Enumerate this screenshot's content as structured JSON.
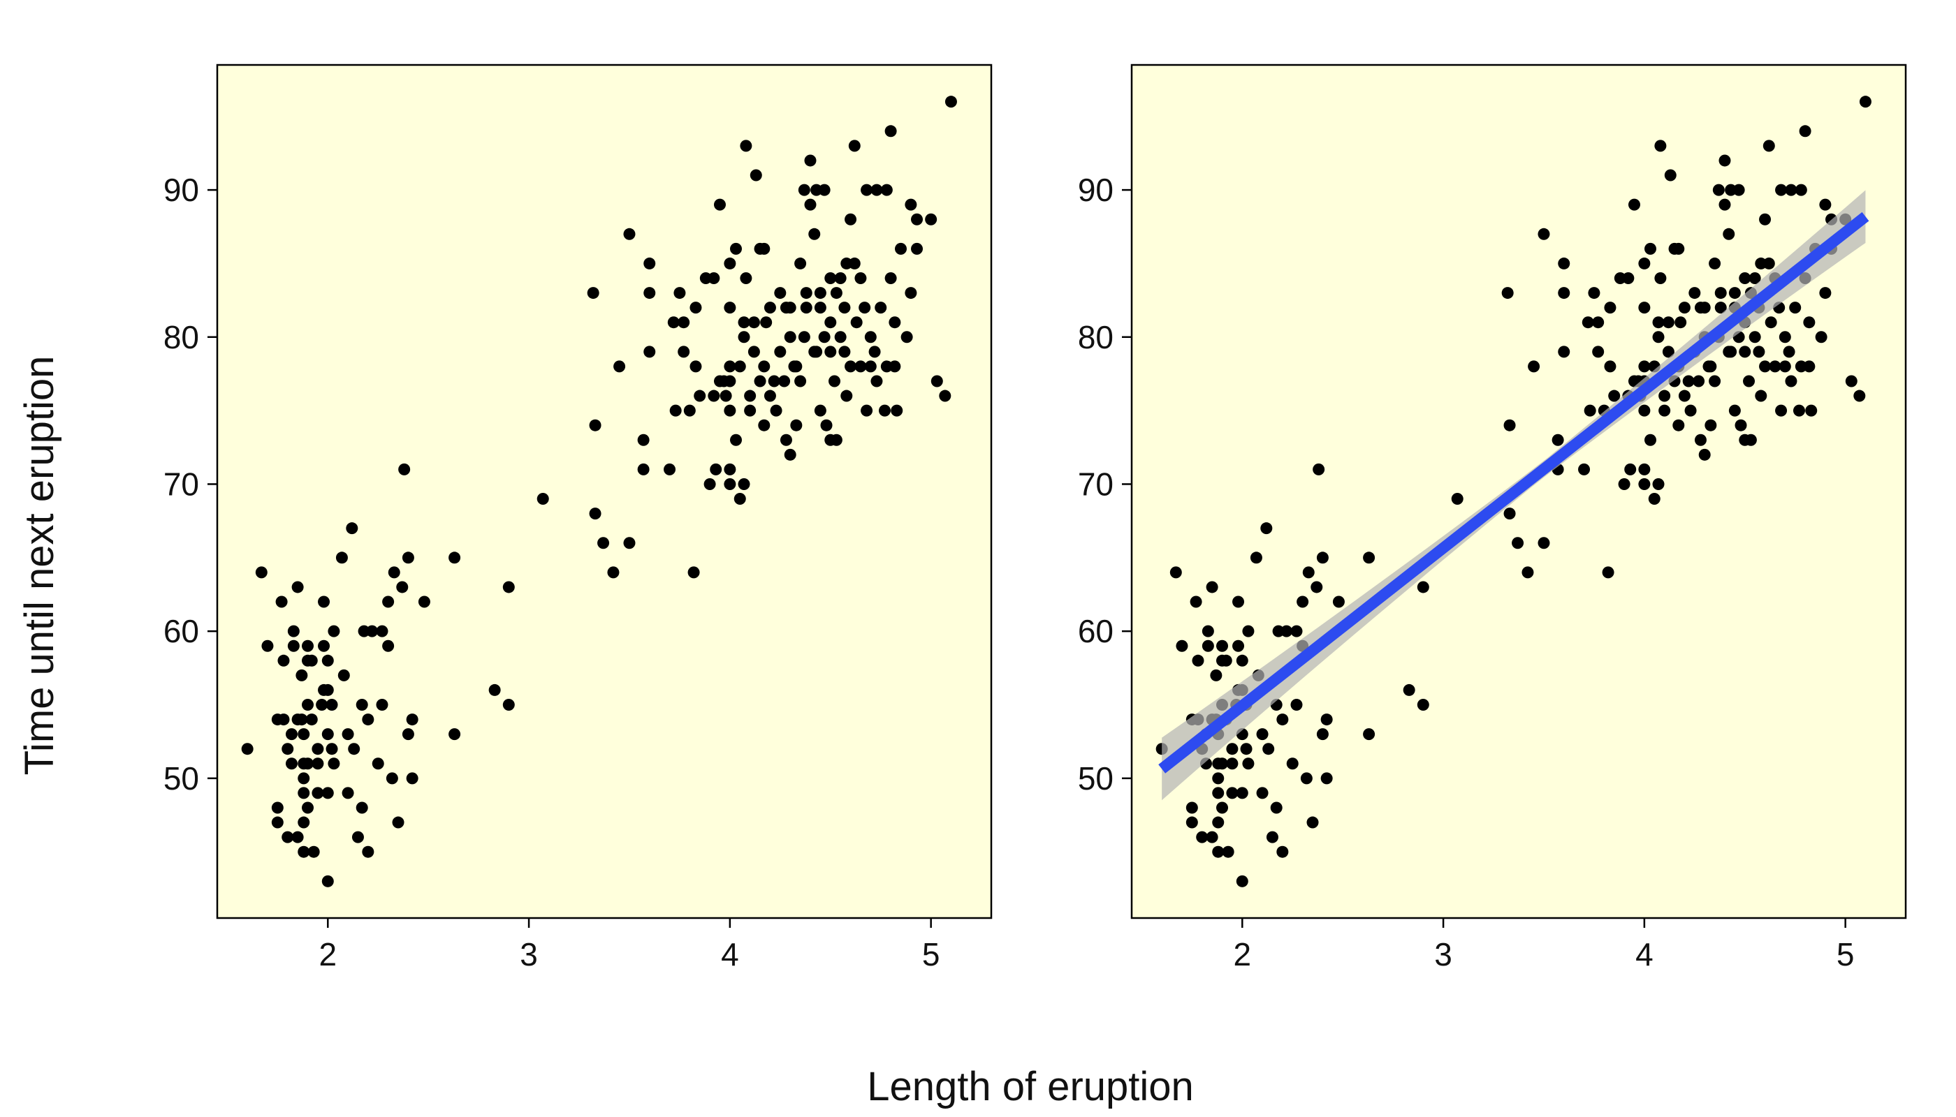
{
  "figure": {
    "xlabel": "Length of eruption",
    "ylabel": "Time until next eruption"
  },
  "chart_data": [
    {
      "type": "scatter",
      "title": "",
      "xlim": [
        1.45,
        5.3
      ],
      "ylim": [
        40.5,
        98.5
      ],
      "xticks": [
        2,
        3,
        4,
        5
      ],
      "yticks": [
        50,
        60,
        70,
        80,
        90
      ],
      "grid": false,
      "points": [
        [
          1.6,
          52
        ],
        [
          1.67,
          64
        ],
        [
          1.7,
          59
        ],
        [
          1.75,
          54
        ],
        [
          1.75,
          48
        ],
        [
          1.75,
          47
        ],
        [
          1.77,
          62
        ],
        [
          1.78,
          58
        ],
        [
          1.78,
          54
        ],
        [
          1.8,
          46
        ],
        [
          1.8,
          52
        ],
        [
          1.82,
          53
        ],
        [
          1.82,
          51
        ],
        [
          1.83,
          60
        ],
        [
          1.83,
          59
        ],
        [
          1.85,
          54
        ],
        [
          1.85,
          46
        ],
        [
          1.85,
          63
        ],
        [
          1.87,
          54
        ],
        [
          1.87,
          57
        ],
        [
          1.88,
          53
        ],
        [
          1.88,
          51
        ],
        [
          1.88,
          45
        ],
        [
          1.88,
          50
        ],
        [
          1.88,
          49
        ],
        [
          1.88,
          47
        ],
        [
          1.9,
          59
        ],
        [
          1.9,
          58
        ],
        [
          1.9,
          55
        ],
        [
          1.9,
          51
        ],
        [
          1.9,
          48
        ],
        [
          1.92,
          58
        ],
        [
          1.92,
          54
        ],
        [
          1.93,
          45
        ],
        [
          1.95,
          49
        ],
        [
          1.95,
          52
        ],
        [
          1.95,
          51
        ],
        [
          1.97,
          55
        ],
        [
          1.98,
          62
        ],
        [
          1.98,
          56
        ],
        [
          1.98,
          59
        ],
        [
          2.0,
          43
        ],
        [
          2.0,
          58
        ],
        [
          2.0,
          53
        ],
        [
          2.0,
          56
        ],
        [
          2.0,
          49
        ],
        [
          2.02,
          55
        ],
        [
          2.02,
          52
        ],
        [
          2.03,
          60
        ],
        [
          2.03,
          51
        ],
        [
          2.07,
          65
        ],
        [
          2.08,
          57
        ],
        [
          2.1,
          53
        ],
        [
          2.1,
          49
        ],
        [
          2.12,
          67
        ],
        [
          2.13,
          52
        ],
        [
          2.15,
          46
        ],
        [
          2.17,
          48
        ],
        [
          2.17,
          55
        ],
        [
          2.18,
          60
        ],
        [
          2.2,
          54
        ],
        [
          2.2,
          45
        ],
        [
          2.22,
          60
        ],
        [
          2.25,
          51
        ],
        [
          2.27,
          55
        ],
        [
          2.27,
          60
        ],
        [
          2.3,
          62
        ],
        [
          2.3,
          59
        ],
        [
          2.32,
          50
        ],
        [
          2.33,
          64
        ],
        [
          2.35,
          47
        ],
        [
          2.37,
          63
        ],
        [
          2.38,
          71
        ],
        [
          2.4,
          53
        ],
        [
          2.4,
          65
        ],
        [
          2.42,
          54
        ],
        [
          2.42,
          50
        ],
        [
          2.48,
          62
        ],
        [
          2.63,
          53
        ],
        [
          2.63,
          65
        ],
        [
          2.83,
          56
        ],
        [
          2.9,
          55
        ],
        [
          2.9,
          63
        ],
        [
          3.07,
          69
        ],
        [
          3.32,
          83
        ],
        [
          3.33,
          68
        ],
        [
          3.33,
          74
        ],
        [
          3.37,
          66
        ],
        [
          3.42,
          64
        ],
        [
          3.45,
          78
        ],
        [
          3.5,
          66
        ],
        [
          3.5,
          87
        ],
        [
          3.57,
          71
        ],
        [
          3.57,
          73
        ],
        [
          3.6,
          85
        ],
        [
          3.6,
          83
        ],
        [
          3.6,
          79
        ],
        [
          3.7,
          71
        ],
        [
          3.72,
          81
        ],
        [
          3.73,
          75
        ],
        [
          3.75,
          83
        ],
        [
          3.77,
          79
        ],
        [
          3.77,
          81
        ],
        [
          3.8,
          75
        ],
        [
          3.82,
          64
        ],
        [
          3.83,
          78
        ],
        [
          3.83,
          82
        ],
        [
          3.85,
          76
        ],
        [
          3.88,
          84
        ],
        [
          3.9,
          70
        ],
        [
          3.92,
          76
        ],
        [
          3.92,
          84
        ],
        [
          3.93,
          71
        ],
        [
          3.95,
          89
        ],
        [
          3.95,
          77
        ],
        [
          3.97,
          77
        ],
        [
          3.98,
          76
        ],
        [
          4.0,
          70
        ],
        [
          4.0,
          85
        ],
        [
          4.0,
          71
        ],
        [
          4.0,
          82
        ],
        [
          4.0,
          78
        ],
        [
          4.0,
          77
        ],
        [
          4.0,
          75
        ],
        [
          4.03,
          73
        ],
        [
          4.03,
          86
        ],
        [
          4.05,
          69
        ],
        [
          4.05,
          78
        ],
        [
          4.07,
          80
        ],
        [
          4.07,
          70
        ],
        [
          4.07,
          81
        ],
        [
          4.08,
          84
        ],
        [
          4.08,
          93
        ],
        [
          4.1,
          76
        ],
        [
          4.1,
          75
        ],
        [
          4.12,
          79
        ],
        [
          4.12,
          81
        ],
        [
          4.13,
          91
        ],
        [
          4.15,
          86
        ],
        [
          4.15,
          77
        ],
        [
          4.17,
          86
        ],
        [
          4.17,
          74
        ],
        [
          4.17,
          78
        ],
        [
          4.18,
          81
        ],
        [
          4.2,
          76
        ],
        [
          4.2,
          82
        ],
        [
          4.22,
          77
        ],
        [
          4.23,
          75
        ],
        [
          4.25,
          79
        ],
        [
          4.25,
          83
        ],
        [
          4.27,
          77
        ],
        [
          4.28,
          82
        ],
        [
          4.28,
          73
        ],
        [
          4.3,
          72
        ],
        [
          4.3,
          82
        ],
        [
          4.3,
          80
        ],
        [
          4.32,
          78
        ],
        [
          4.33,
          78
        ],
        [
          4.33,
          74
        ],
        [
          4.35,
          85
        ],
        [
          4.35,
          77
        ],
        [
          4.37,
          90
        ],
        [
          4.37,
          80
        ],
        [
          4.38,
          82
        ],
        [
          4.38,
          83
        ],
        [
          4.4,
          92
        ],
        [
          4.4,
          89
        ],
        [
          4.42,
          79
        ],
        [
          4.42,
          87
        ],
        [
          4.43,
          90
        ],
        [
          4.43,
          79
        ],
        [
          4.45,
          82
        ],
        [
          4.45,
          75
        ],
        [
          4.45,
          83
        ],
        [
          4.47,
          90
        ],
        [
          4.47,
          80
        ],
        [
          4.48,
          74
        ],
        [
          4.5,
          73
        ],
        [
          4.5,
          84
        ],
        [
          4.5,
          79
        ],
        [
          4.5,
          81
        ],
        [
          4.52,
          77
        ],
        [
          4.53,
          83
        ],
        [
          4.53,
          73
        ],
        [
          4.55,
          84
        ],
        [
          4.55,
          80
        ],
        [
          4.57,
          82
        ],
        [
          4.57,
          79
        ],
        [
          4.58,
          85
        ],
        [
          4.58,
          76
        ],
        [
          4.6,
          88
        ],
        [
          4.6,
          78
        ],
        [
          4.62,
          93
        ],
        [
          4.62,
          85
        ],
        [
          4.63,
          81
        ],
        [
          4.65,
          84
        ],
        [
          4.65,
          78
        ],
        [
          4.67,
          82
        ],
        [
          4.68,
          75
        ],
        [
          4.68,
          90
        ],
        [
          4.7,
          78
        ],
        [
          4.7,
          80
        ],
        [
          4.72,
          79
        ],
        [
          4.73,
          90
        ],
        [
          4.73,
          77
        ],
        [
          4.75,
          82
        ],
        [
          4.77,
          75
        ],
        [
          4.78,
          78
        ],
        [
          4.78,
          90
        ],
        [
          4.8,
          94
        ],
        [
          4.8,
          84
        ],
        [
          4.82,
          81
        ],
        [
          4.82,
          78
        ],
        [
          4.83,
          75
        ],
        [
          4.85,
          86
        ],
        [
          4.88,
          80
        ],
        [
          4.9,
          83
        ],
        [
          4.9,
          89
        ],
        [
          4.93,
          86
        ],
        [
          4.93,
          88
        ],
        [
          5.0,
          88
        ],
        [
          5.03,
          77
        ],
        [
          5.07,
          76
        ],
        [
          5.1,
          96
        ]
      ]
    },
    {
      "type": "scatter",
      "title": "",
      "xlim": [
        1.45,
        5.3
      ],
      "ylim": [
        40.5,
        98.5
      ],
      "xticks": [
        2,
        3,
        4,
        5
      ],
      "yticks": [
        50,
        60,
        70,
        80,
        90
      ],
      "grid": false,
      "points": "same as first panel",
      "fit": {
        "type": "linear",
        "x_range": [
          1.6,
          5.1
        ],
        "intercept": 33.47,
        "slope": 10.73,
        "line_color": "#2d4bf0",
        "band_color": "#b4b4b4"
      }
    }
  ]
}
